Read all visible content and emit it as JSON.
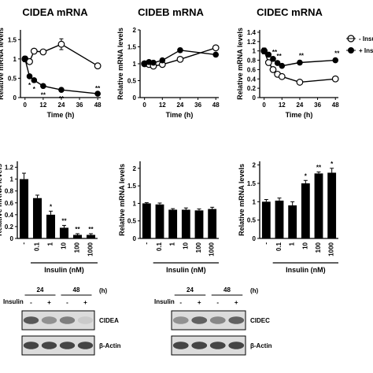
{
  "chart_data": [
    {
      "type": "line",
      "title": "CIDEA mRNA",
      "xlabel": "Time (h)",
      "ylabel": "Relative mRNA levels",
      "xticks": [
        0,
        12,
        24,
        36,
        48
      ],
      "yticks": [
        0,
        0.5,
        1.0,
        1.5
      ],
      "xlim": [
        -3,
        50
      ],
      "ylim": [
        0,
        1.75
      ],
      "series": [
        {
          "name": "- Insulin",
          "marker": "open",
          "x": [
            0,
            3,
            6,
            12,
            24,
            48
          ],
          "y": [
            1.0,
            0.93,
            1.2,
            1.18,
            1.38,
            0.82
          ],
          "err": [
            0.07,
            0.05,
            0.06,
            0.05,
            0.14,
            0.03
          ]
        },
        {
          "name": "+ Insulin",
          "marker": "filled",
          "x": [
            0,
            3,
            6,
            12,
            24,
            48
          ],
          "y": [
            1.0,
            0.55,
            0.45,
            0.3,
            0.2,
            0.1
          ],
          "err": [
            0.05,
            0.04,
            0.04,
            0.03,
            0.03,
            0.02
          ]
        }
      ],
      "annotations": [
        {
          "x": 3,
          "y": 0.55,
          "text": "*"
        },
        {
          "x": 6,
          "y": 0.45,
          "text": "*"
        },
        {
          "x": 12,
          "y": 0.3,
          "text": "**"
        },
        {
          "x": 24,
          "y": 0.2,
          "text": "**"
        },
        {
          "x": 48,
          "y": 0.1,
          "text": "**"
        }
      ]
    },
    {
      "type": "line",
      "title": "CIDEB mRNA",
      "xlabel": "Time (h)",
      "ylabel": "Relative mRNA levels",
      "xticks": [
        0,
        12,
        24,
        36,
        48
      ],
      "yticks": [
        0,
        0.5,
        1.0,
        1.5,
        2.0
      ],
      "xlim": [
        -3,
        50
      ],
      "ylim": [
        0,
        2.0
      ],
      "series": [
        {
          "name": "- Insulin",
          "marker": "open",
          "x": [
            0,
            3,
            6,
            12,
            24,
            48
          ],
          "y": [
            1.0,
            0.98,
            0.93,
            0.98,
            1.13,
            1.47
          ],
          "err": [
            0.06,
            0.05,
            0.04,
            0.04,
            0.05,
            0.06
          ]
        },
        {
          "name": "+ Insulin",
          "marker": "filled",
          "x": [
            0,
            3,
            6,
            12,
            24,
            48
          ],
          "y": [
            1.0,
            1.05,
            1.03,
            1.1,
            1.4,
            1.27
          ],
          "err": [
            0.06,
            0.05,
            0.05,
            0.05,
            0.06,
            0.05
          ]
        }
      ],
      "annotations": []
    },
    {
      "type": "line",
      "title": "CIDEC mRNA",
      "xlabel": "Time (h)",
      "ylabel": "Relative mRNA levels",
      "xticks": [
        0,
        12,
        24,
        36,
        48
      ],
      "yticks": [
        0,
        0.2,
        0.4,
        0.6,
        0.8,
        1.0,
        1.2,
        1.4
      ],
      "xlim": [
        -3,
        50
      ],
      "ylim": [
        0,
        1.45
      ],
      "series": [
        {
          "name": "- Insulin",
          "marker": "open",
          "x": [
            0,
            3,
            6,
            9,
            12,
            24,
            48
          ],
          "y": [
            1.0,
            0.75,
            0.6,
            0.5,
            0.45,
            0.33,
            0.4
          ],
          "err": [
            0.06,
            0.04,
            0.04,
            0.03,
            0.03,
            0.05,
            0.03
          ]
        },
        {
          "name": "+ Insulin",
          "marker": "filled",
          "x": [
            0,
            3,
            6,
            9,
            12,
            24,
            48
          ],
          "y": [
            1.0,
            0.92,
            0.83,
            0.74,
            0.68,
            0.75,
            0.8
          ],
          "err": [
            0.06,
            0.04,
            0.04,
            0.03,
            0.03,
            0.03,
            0.03
          ]
        }
      ],
      "annotations": [
        {
          "x": 6,
          "y": 0.83,
          "text": "**"
        },
        {
          "x": 9,
          "y": 0.74,
          "text": "**"
        },
        {
          "x": 24,
          "y": 0.75,
          "text": "**"
        },
        {
          "x": 48,
          "y": 0.8,
          "text": "**"
        }
      ]
    },
    {
      "type": "bar",
      "xlabel": "Insulin (nM)",
      "ylabel": "Relative mRNA levels",
      "categories": [
        "-",
        "0.1",
        "1",
        "10",
        "100",
        "1000"
      ],
      "values": [
        1.0,
        0.68,
        0.4,
        0.18,
        0.06,
        0.06
      ],
      "err": [
        0.1,
        0.05,
        0.06,
        0.04,
        0.02,
        0.02
      ],
      "yticks": [
        0,
        0.2,
        0.4,
        0.6,
        0.8,
        1.0,
        1.2
      ],
      "ylim": [
        0,
        1.3
      ],
      "annotations": [
        {
          "index": 2,
          "text": "*"
        },
        {
          "index": 3,
          "text": "**"
        },
        {
          "index": 4,
          "text": "**"
        },
        {
          "index": 5,
          "text": "**"
        }
      ]
    },
    {
      "type": "bar",
      "xlabel": "Insulin (nM)",
      "ylabel": "Relative mRNA levels",
      "categories": [
        "-",
        "0.1",
        "1",
        "10",
        "100",
        "1000"
      ],
      "values": [
        1.0,
        0.97,
        0.82,
        0.82,
        0.8,
        0.84
      ],
      "err": [
        0.02,
        0.04,
        0.03,
        0.05,
        0.04,
        0.05
      ],
      "yticks": [
        0,
        0.5,
        1.0,
        1.5,
        2.0
      ],
      "ylim": [
        0,
        2.2
      ],
      "annotations": []
    },
    {
      "type": "bar",
      "xlabel": "Insulin (nM)",
      "ylabel": "Relative mRNA levels",
      "categories": [
        "-",
        "0.1",
        "1",
        "10",
        "100",
        "1000"
      ],
      "values": [
        1.0,
        1.03,
        0.9,
        1.5,
        1.77,
        1.79
      ],
      "err": [
        0.06,
        0.07,
        0.1,
        0.08,
        0.04,
        0.12
      ],
      "yticks": [
        0,
        0.5,
        1.0,
        1.5,
        2.0
      ],
      "ylim": [
        0,
        2.1
      ],
      "annotations": [
        {
          "index": 3,
          "text": "*"
        },
        {
          "index": 4,
          "text": "**"
        },
        {
          "index": 5,
          "text": "*"
        }
      ]
    }
  ],
  "blots": [
    {
      "times": [
        "24",
        "48"
      ],
      "time_unit": "(h)",
      "treatment_label": "Insulin",
      "lanes": [
        "-",
        "+",
        "-",
        "+"
      ],
      "rows": [
        {
          "label": "CIDEA",
          "intensity": [
            0.75,
            0.45,
            0.55,
            0.15
          ]
        },
        {
          "label": "β-Actin",
          "intensity": [
            0.85,
            0.85,
            0.85,
            0.85
          ]
        }
      ]
    },
    {
      "times": [
        "24",
        "48"
      ],
      "time_unit": "(h)",
      "treatment_label": "Insulin",
      "lanes": [
        "-",
        "+",
        "-",
        "+"
      ],
      "rows": [
        {
          "label": "CIDEC",
          "intensity": [
            0.45,
            0.7,
            0.5,
            0.7
          ]
        },
        {
          "label": "β-Actin",
          "intensity": [
            0.85,
            0.85,
            0.85,
            0.85
          ]
        }
      ]
    }
  ]
}
